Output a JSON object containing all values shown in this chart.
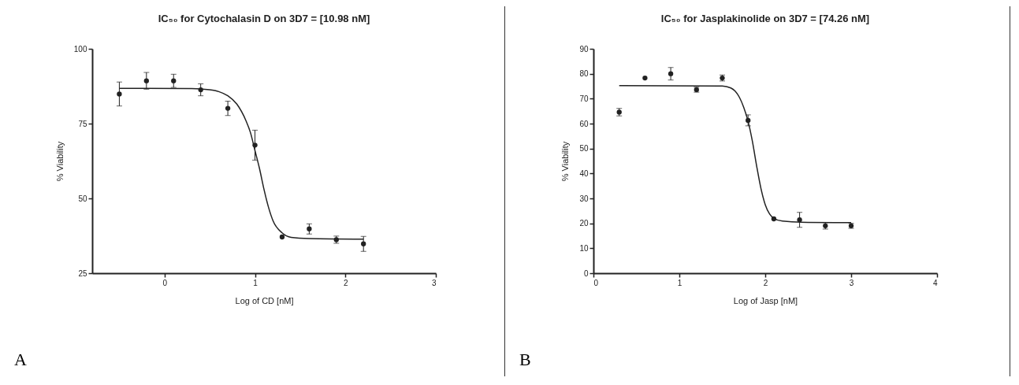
{
  "chart_data": [
    {
      "type": "scatter",
      "title": "IC₅₀ for Cytochalasin D on 3D7 = [10.98 nM]",
      "xlabel": "Log of CD [nM]",
      "ylabel": "% Viability",
      "xlim": [
        -0.8,
        3
      ],
      "xticks": [
        0,
        1,
        2,
        3
      ],
      "ylim": [
        25,
        100
      ],
      "yticks": [
        25,
        50,
        75,
        100
      ],
      "grid": false,
      "legend": false,
      "annotations": [
        "A"
      ],
      "series": [
        {
          "type": "scatter",
          "marker": "circle",
          "color": "#222222",
          "x": [
            -0.5,
            -0.2,
            0.1,
            0.4,
            0.7,
            1.0,
            1.3,
            1.6,
            1.9,
            2.2
          ],
          "values": [
            84.9,
            89.3,
            89.3,
            86.3,
            80.1,
            67.8,
            37.1,
            39.8,
            36.2,
            34.8
          ],
          "errors": [
            4,
            2.8,
            2.2,
            2,
            2.4,
            5,
            null,
            1.7,
            1.2,
            2.5
          ]
        },
        {
          "type": "line",
          "marker": "none",
          "color": "#222222",
          "x": [
            -0.5,
            0.3,
            0.5,
            0.6,
            0.7,
            0.8,
            0.9,
            0.95,
            1.0,
            1.05,
            1.1,
            1.15,
            1.2,
            1.3,
            1.4,
            1.6,
            2.2
          ],
          "values": [
            86.8,
            86.7,
            86.3,
            85.7,
            84.3,
            81.5,
            76,
            72,
            66,
            60,
            53,
            47,
            42.5,
            38.5,
            37,
            36.6,
            36.4
          ]
        }
      ]
    },
    {
      "type": "scatter",
      "title": "IC₅₀ for Jasplakinolide on 3D7 = [74.26 nM]",
      "xlabel": "Log of Jasp [nM]",
      "ylabel": "% Viability",
      "xlim": [
        0,
        4
      ],
      "xticks": [
        0,
        1,
        2,
        3,
        4
      ],
      "ylim": [
        0,
        90
      ],
      "yticks": [
        0,
        10,
        20,
        30,
        40,
        50,
        60,
        70,
        80,
        90
      ],
      "grid": false,
      "legend": false,
      "annotations": [
        "B"
      ],
      "series": [
        {
          "type": "scatter",
          "marker": "circle",
          "color": "#222222",
          "x": [
            0.3,
            0.6,
            0.9,
            1.2,
            1.5,
            1.8,
            2.1,
            2.4,
            2.7,
            3.0
          ],
          "values": [
            64.6,
            78.3,
            80.0,
            73.6,
            78.3,
            61.3,
            21.8,
            21.4,
            19.0,
            19.0
          ],
          "errors": [
            1.5,
            null,
            2.5,
            1,
            1.2,
            2.2,
            null,
            3,
            1.3,
            1
          ]
        },
        {
          "type": "line",
          "marker": "none",
          "color": "#222222",
          "x": [
            0.3,
            1.5,
            1.6,
            1.65,
            1.7,
            1.75,
            1.8,
            1.85,
            1.9,
            1.95,
            2.0,
            2.05,
            2.1,
            2.2,
            2.5,
            3.0
          ],
          "values": [
            75.2,
            75.1,
            74.3,
            73,
            70.5,
            66.5,
            61,
            53,
            43,
            34,
            27.5,
            23.8,
            22,
            20.9,
            20.4,
            20.3
          ]
        }
      ]
    }
  ]
}
